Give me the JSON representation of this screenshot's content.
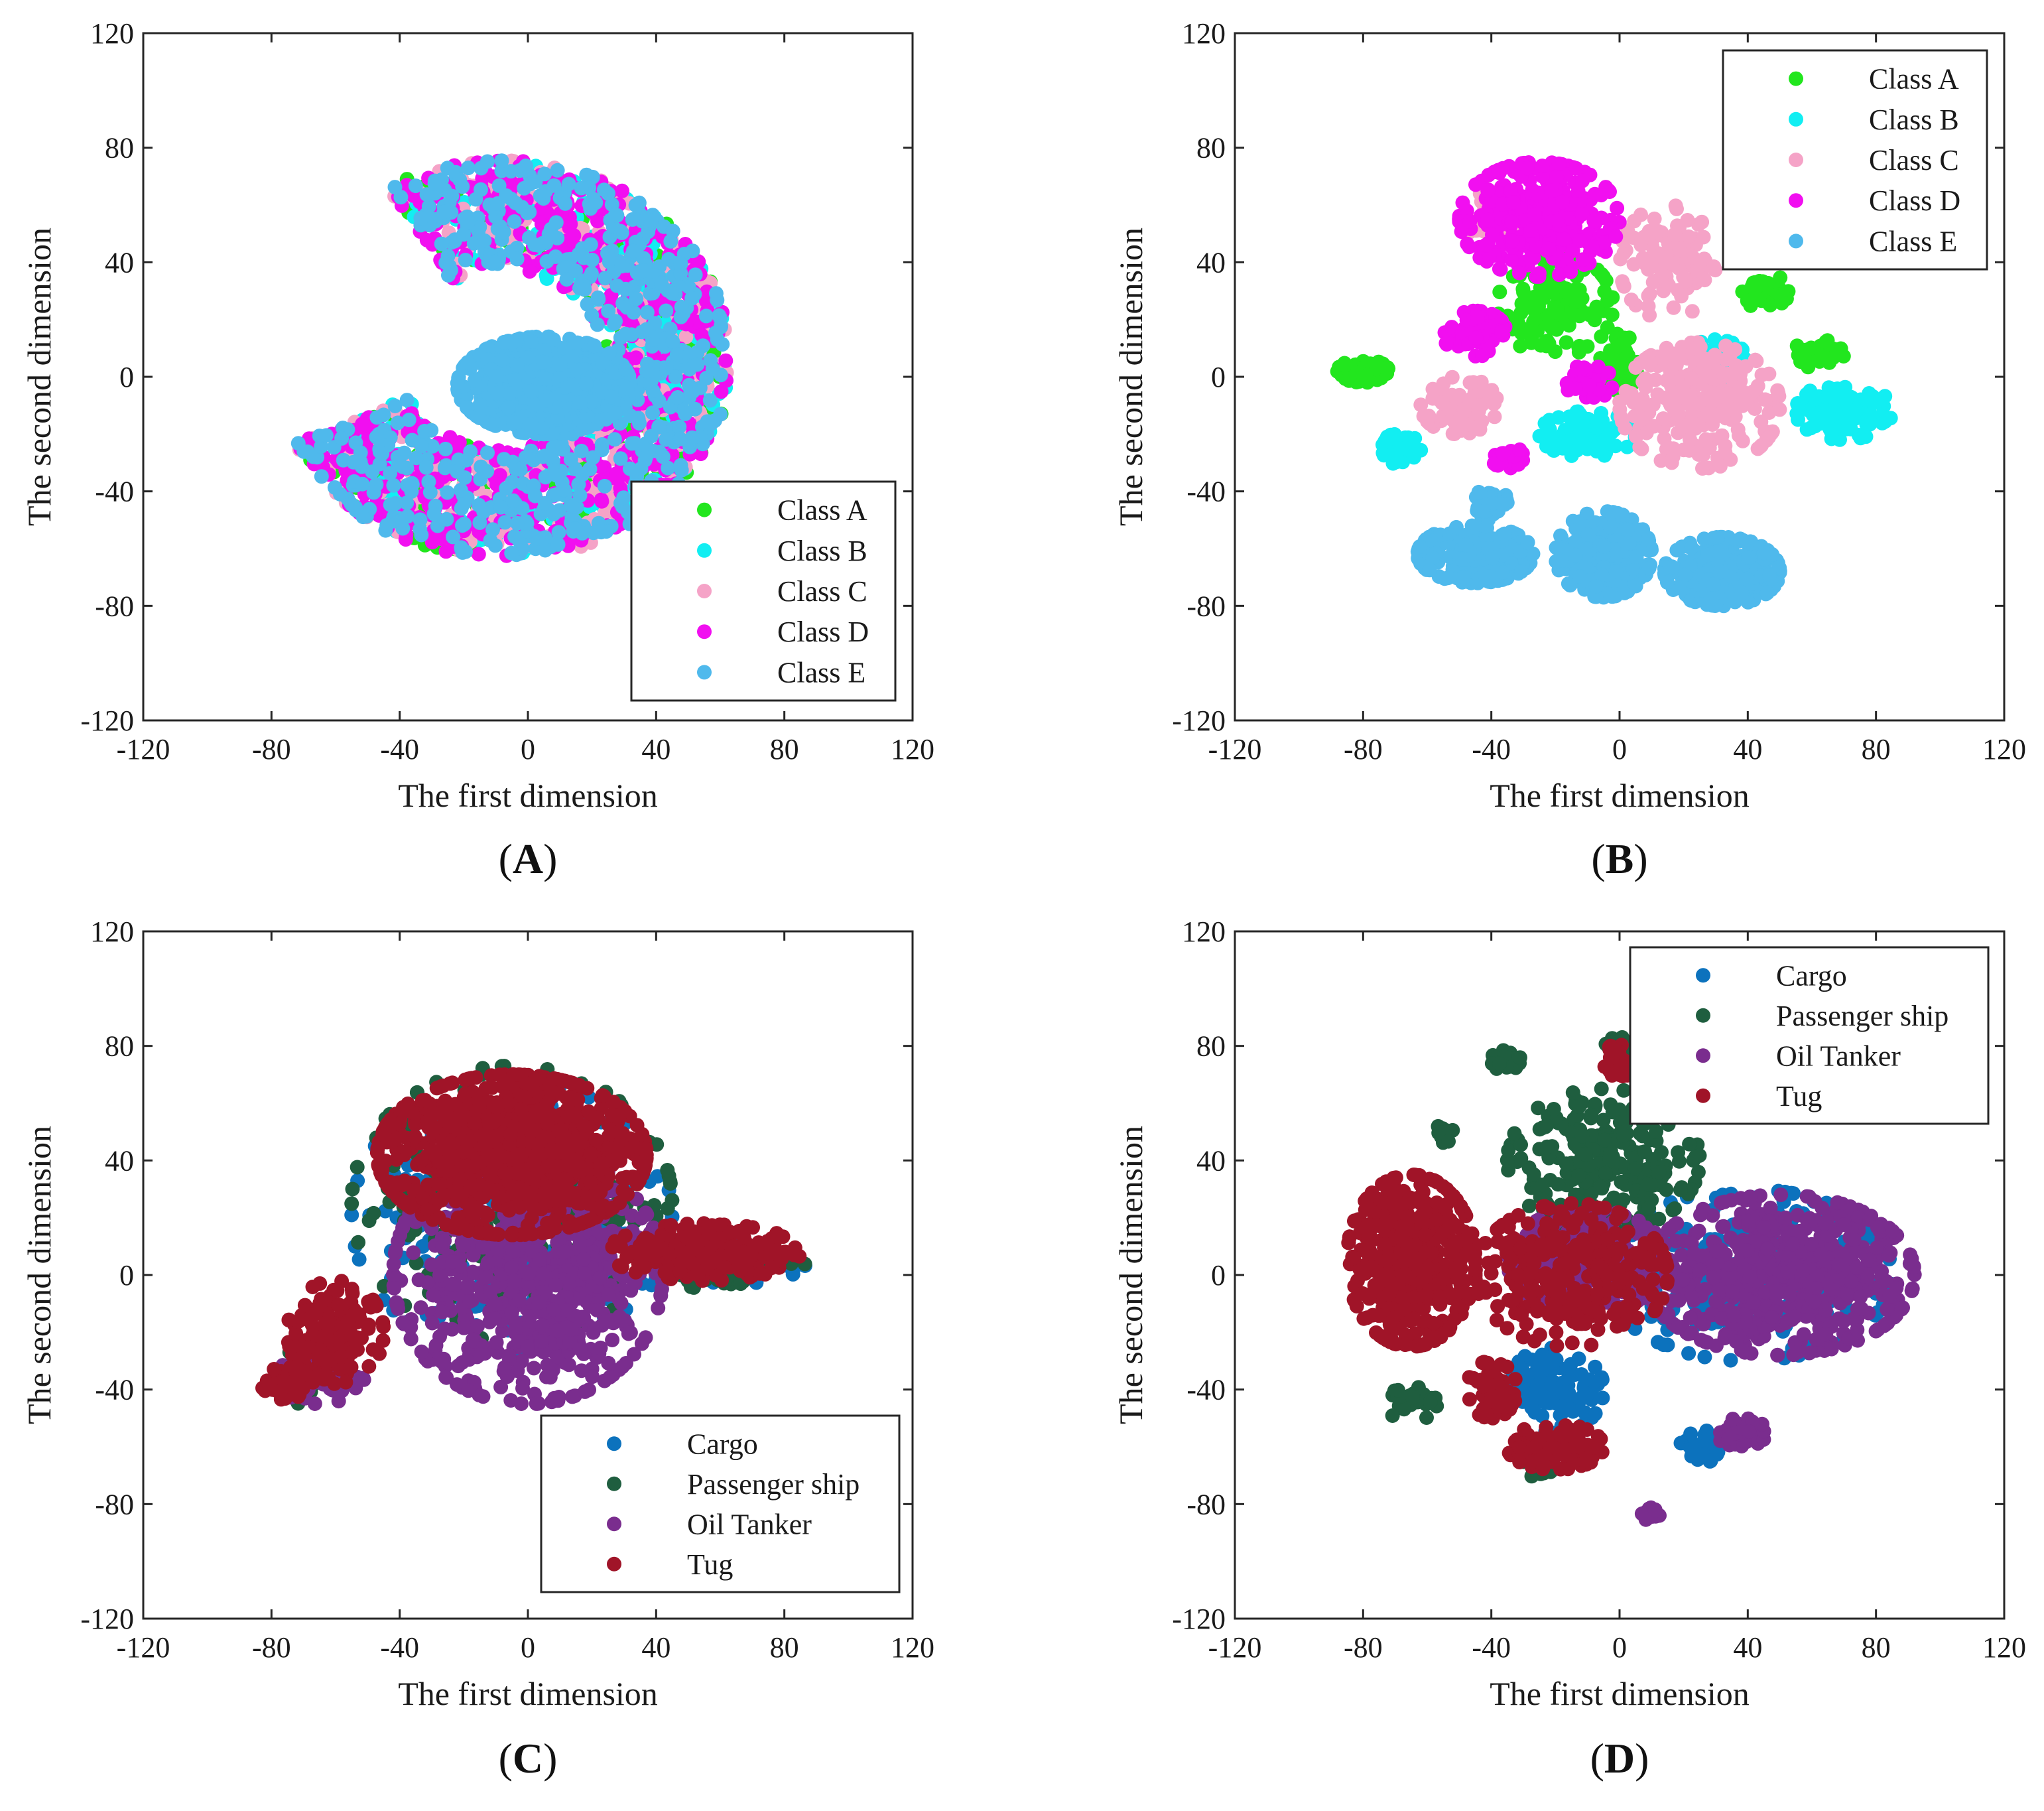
{
  "chart_data": [
    {
      "id": "A",
      "type": "scatter",
      "panel_label": "A",
      "xlabel": "The first dimension",
      "ylabel": "The second dimension",
      "xlim": [
        -120,
        120
      ],
      "ylim": [
        -120,
        120
      ],
      "xticks": [
        -120,
        -80,
        -40,
        0,
        40,
        80,
        120
      ],
      "yticks": [
        -120,
        -80,
        -40,
        0,
        40,
        80,
        120
      ],
      "legend_position": "bottom-right",
      "series": [
        {
          "name": "Class A",
          "color": "#22e61e",
          "clusters": [
            {
              "shape": "annulus",
              "cx": -8,
              "cy": 6,
              "rin": 32,
              "rout": 71,
              "n": 260,
              "gap": [
                -60,
                25
              ]
            }
          ]
        },
        {
          "name": "Class B",
          "color": "#12eef2",
          "clusters": [
            {
              "shape": "annulus",
              "cx": -8,
              "cy": 6,
              "rin": 32,
              "rout": 71,
              "n": 320,
              "gap": [
                -60,
                25
              ]
            }
          ]
        },
        {
          "name": "Class C",
          "color": "#f5a3c7",
          "clusters": [
            {
              "shape": "annulus",
              "cx": -8,
              "cy": 6,
              "rin": 32,
              "rout": 71,
              "n": 380,
              "gap": [
                -60,
                25
              ]
            }
          ]
        },
        {
          "name": "Class D",
          "color": "#f10ff0",
          "clusters": [
            {
              "shape": "annulus",
              "cx": -8,
              "cy": 6,
              "rin": 32,
              "rout": 71,
              "n": 620,
              "gap": [
                -60,
                25
              ]
            }
          ]
        },
        {
          "name": "Class E",
          "color": "#4fb9ec",
          "clusters": [
            {
              "shape": "annulus",
              "cx": -8,
              "cy": 6,
              "rin": 32,
              "rout": 71,
              "n": 620,
              "gap": [
                -60,
                25
              ]
            },
            {
              "shape": "ellipse",
              "cx": 5,
              "cy": -3,
              "rx": 27,
              "ry": 17,
              "n": 700
            }
          ]
        }
      ]
    },
    {
      "id": "B",
      "type": "scatter",
      "panel_label": "B",
      "xlabel": "The first dimension",
      "ylabel": "The second dimension",
      "xlim": [
        -120,
        120
      ],
      "ylim": [
        -120,
        120
      ],
      "xticks": [
        -120,
        -80,
        -40,
        0,
        40,
        80,
        120
      ],
      "yticks": [
        -120,
        -80,
        -40,
        0,
        40,
        80,
        120
      ],
      "legend_position": "top-right",
      "series": [
        {
          "name": "Class A",
          "color": "#22e61e",
          "clusters": [
            {
              "shape": "ellipse",
              "cx": -80,
              "cy": 2,
              "rx": 8,
              "ry": 4,
              "n": 60
            },
            {
              "shape": "ellipse",
              "cx": -20,
              "cy": 25,
              "rx": 18,
              "ry": 18,
              "n": 120
            },
            {
              "shape": "ellipse",
              "cx": 0,
              "cy": 5,
              "rx": 6,
              "ry": 10,
              "n": 60
            },
            {
              "shape": "ellipse",
              "cx": 45,
              "cy": 30,
              "rx": 8,
              "ry": 6,
              "n": 50
            },
            {
              "shape": "ellipse",
              "cx": 62,
              "cy": 8,
              "rx": 8,
              "ry": 5,
              "n": 40
            }
          ]
        },
        {
          "name": "Class B",
          "color": "#12eef2",
          "clusters": [
            {
              "shape": "ellipse",
              "cx": -68,
              "cy": -25,
              "rx": 6,
              "ry": 6,
              "n": 40
            },
            {
              "shape": "ellipse",
              "cx": -10,
              "cy": -20,
              "rx": 15,
              "ry": 8,
              "n": 90
            },
            {
              "shape": "ellipse",
              "cx": 70,
              "cy": -12,
              "rx": 15,
              "ry": 10,
              "n": 110
            },
            {
              "shape": "ellipse",
              "cx": 30,
              "cy": 5,
              "rx": 10,
              "ry": 8,
              "n": 60
            }
          ]
        },
        {
          "name": "Class C",
          "color": "#f5a3c7",
          "clusters": [
            {
              "shape": "ellipse",
              "cx": -50,
              "cy": -10,
              "rx": 12,
              "ry": 10,
              "n": 90
            },
            {
              "shape": "ellipse",
              "cx": 25,
              "cy": -10,
              "rx": 25,
              "ry": 22,
              "n": 260
            },
            {
              "shape": "ellipse",
              "cx": 15,
              "cy": 40,
              "rx": 15,
              "ry": 20,
              "n": 100
            },
            {
              "shape": "ellipse",
              "cx": -40,
              "cy": 55,
              "rx": 8,
              "ry": 10,
              "n": 40
            }
          ]
        },
        {
          "name": "Class D",
          "color": "#f10ff0",
          "clusters": [
            {
              "shape": "ellipse",
              "cx": -25,
              "cy": 55,
              "rx": 25,
              "ry": 20,
              "n": 320
            },
            {
              "shape": "ellipse",
              "cx": -45,
              "cy": 15,
              "rx": 10,
              "ry": 8,
              "n": 70
            },
            {
              "shape": "ellipse",
              "cx": -35,
              "cy": -28,
              "rx": 5,
              "ry": 4,
              "n": 30
            },
            {
              "shape": "ellipse",
              "cx": -10,
              "cy": -2,
              "rx": 8,
              "ry": 6,
              "n": 40
            }
          ]
        },
        {
          "name": "Class E",
          "color": "#4fb9ec",
          "clusters": [
            {
              "shape": "ellipse",
              "cx": -45,
              "cy": -62,
              "rx": 18,
              "ry": 10,
              "n": 220
            },
            {
              "shape": "ellipse",
              "cx": -40,
              "cy": -44,
              "rx": 5,
              "ry": 6,
              "n": 30
            },
            {
              "shape": "ellipse",
              "cx": -5,
              "cy": -62,
              "rx": 15,
              "ry": 15,
              "n": 260
            },
            {
              "shape": "ellipse",
              "cx": 32,
              "cy": -68,
              "rx": 18,
              "ry": 12,
              "n": 260
            }
          ]
        }
      ]
    },
    {
      "id": "C",
      "type": "scatter",
      "panel_label": "C",
      "xlabel": "The first dimension",
      "ylabel": "The second dimension",
      "xlim": [
        -120,
        120
      ],
      "ylim": [
        -120,
        120
      ],
      "xticks": [
        -120,
        -80,
        -40,
        0,
        40,
        80,
        120
      ],
      "yticks": [
        -120,
        -80,
        -40,
        0,
        40,
        80,
        120
      ],
      "legend_position": "bottom-right",
      "series": [
        {
          "name": "Cargo",
          "color": "#0c72bd",
          "clusters": [
            {
              "shape": "ellipse",
              "cx": -5,
              "cy": 20,
              "rx": 50,
              "ry": 48,
              "n": 260
            },
            {
              "shape": "ellipse",
              "cx": 65,
              "cy": 5,
              "rx": 22,
              "ry": 8,
              "n": 40
            }
          ]
        },
        {
          "name": "Passenger ship",
          "color": "#1f5e3f",
          "clusters": [
            {
              "shape": "ellipse",
              "cx": -5,
              "cy": 25,
              "rx": 50,
              "ry": 48,
              "n": 240
            },
            {
              "shape": "ellipse",
              "cx": -70,
              "cy": -35,
              "rx": 10,
              "ry": 10,
              "n": 40
            },
            {
              "shape": "ellipse",
              "cx": 65,
              "cy": 2,
              "rx": 22,
              "ry": 8,
              "n": 40
            }
          ]
        },
        {
          "name": "Oil Tanker",
          "color": "#7a2d8e",
          "clusters": [
            {
              "shape": "ellipse",
              "cx": 0,
              "cy": 0,
              "rx": 42,
              "ry": 45,
              "n": 700
            },
            {
              "shape": "ellipse",
              "cx": -65,
              "cy": -35,
              "rx": 14,
              "ry": 10,
              "n": 60
            }
          ]
        },
        {
          "name": "Tug",
          "color": "#a01428",
          "clusters": [
            {
              "shape": "ellipse",
              "cx": -5,
              "cy": 42,
              "rx": 42,
              "ry": 28,
              "n": 900
            },
            {
              "shape": "ellipse",
              "cx": 55,
              "cy": 8,
              "rx": 30,
              "ry": 10,
              "n": 200
            },
            {
              "shape": "ellipse",
              "cx": -60,
              "cy": -20,
              "rx": 15,
              "ry": 18,
              "n": 150
            },
            {
              "shape": "ellipse",
              "cx": -75,
              "cy": -38,
              "rx": 8,
              "ry": 6,
              "n": 60
            }
          ]
        }
      ]
    },
    {
      "id": "D",
      "type": "scatter",
      "panel_label": "D",
      "xlabel": "The first dimension",
      "ylabel": "The second dimension",
      "xlim": [
        -120,
        120
      ],
      "ylim": [
        -120,
        120
      ],
      "xticks": [
        -120,
        -80,
        -40,
        0,
        40,
        80,
        120
      ],
      "yticks": [
        -120,
        -80,
        -40,
        0,
        40,
        80,
        120
      ],
      "legend_position": "top-right",
      "series": [
        {
          "name": "Cargo",
          "color": "#0c72bd",
          "clusters": [
            {
              "shape": "ellipse",
              "cx": -20,
              "cy": -40,
              "rx": 15,
              "ry": 15,
              "n": 120
            },
            {
              "shape": "ellipse",
              "cx": 40,
              "cy": 0,
              "rx": 45,
              "ry": 30,
              "n": 250
            },
            {
              "shape": "ellipse",
              "cx": 25,
              "cy": -60,
              "rx": 6,
              "ry": 6,
              "n": 30
            }
          ]
        },
        {
          "name": "Passenger ship",
          "color": "#1f5e3f",
          "clusters": [
            {
              "shape": "ellipse",
              "cx": -5,
              "cy": 40,
              "rx": 30,
              "ry": 25,
              "n": 250
            },
            {
              "shape": "ellipse",
              "cx": -35,
              "cy": 75,
              "rx": 5,
              "ry": 4,
              "n": 25
            },
            {
              "shape": "ellipse",
              "cx": -55,
              "cy": 50,
              "rx": 3,
              "ry": 4,
              "n": 15
            },
            {
              "shape": "ellipse",
              "cx": -25,
              "cy": -65,
              "rx": 5,
              "ry": 6,
              "n": 25
            },
            {
              "shape": "ellipse",
              "cx": -65,
              "cy": -45,
              "rx": 8,
              "ry": 6,
              "n": 30
            },
            {
              "shape": "ellipse",
              "cx": 0,
              "cy": 80,
              "rx": 5,
              "ry": 3,
              "n": 20
            }
          ]
        },
        {
          "name": "Oil Tanker",
          "color": "#7a2d8e",
          "clusters": [
            {
              "shape": "ellipse",
              "cx": 50,
              "cy": 0,
              "rx": 42,
              "ry": 28,
              "n": 600
            },
            {
              "shape": "ellipse",
              "cx": -10,
              "cy": 5,
              "rx": 25,
              "ry": 18,
              "n": 250
            },
            {
              "shape": "ellipse",
              "cx": 38,
              "cy": -55,
              "rx": 8,
              "ry": 5,
              "n": 40
            },
            {
              "shape": "ellipse",
              "cx": 10,
              "cy": -83,
              "rx": 3,
              "ry": 3,
              "n": 15
            }
          ]
        },
        {
          "name": "Tug",
          "color": "#a01428",
          "clusters": [
            {
              "shape": "ellipse",
              "cx": -65,
              "cy": 5,
              "rx": 20,
              "ry": 30,
              "n": 450
            },
            {
              "shape": "ellipse",
              "cx": -15,
              "cy": 0,
              "rx": 30,
              "ry": 25,
              "n": 300
            },
            {
              "shape": "ellipse",
              "cx": -20,
              "cy": -60,
              "rx": 15,
              "ry": 8,
              "n": 100
            },
            {
              "shape": "ellipse",
              "cx": -40,
              "cy": -40,
              "rx": 8,
              "ry": 10,
              "n": 60
            },
            {
              "shape": "ellipse",
              "cx": 0,
              "cy": 75,
              "rx": 5,
              "ry": 6,
              "n": 30
            }
          ]
        }
      ]
    }
  ]
}
